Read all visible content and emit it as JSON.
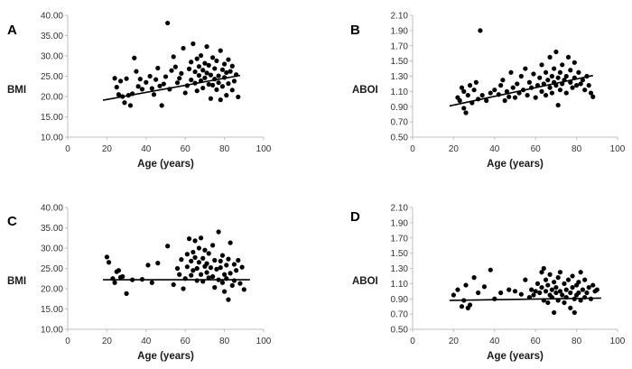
{
  "chart_data": [
    {
      "panel": "A",
      "type": "scatter",
      "xlabel": "Age (years)",
      "ylabel": "BMI",
      "xlim": [
        0,
        100
      ],
      "ylim": [
        10,
        40
      ],
      "x_ticks": [
        "0",
        "20",
        "40",
        "60",
        "80",
        "100"
      ],
      "y_ticks": [
        "10.00",
        "15.00",
        "20.00",
        "25.00",
        "30.00",
        "35.00",
        "40.00"
      ],
      "trendline": {
        "x": [
          18,
          88
        ],
        "y": [
          19.1,
          25.2
        ]
      },
      "points": [
        [
          24,
          24.5
        ],
        [
          25,
          22.3
        ],
        [
          26,
          20.5
        ],
        [
          27,
          23.8
        ],
        [
          28,
          20.0
        ],
        [
          29,
          18.5
        ],
        [
          30,
          24.4
        ],
        [
          31,
          20.3
        ],
        [
          32,
          17.8
        ],
        [
          33,
          20.7
        ],
        [
          34,
          29.5
        ],
        [
          35,
          26.2
        ],
        [
          36,
          22.5
        ],
        [
          37,
          24.3
        ],
        [
          38,
          21.8
        ],
        [
          40,
          23.5
        ],
        [
          42,
          25.0
        ],
        [
          43,
          22.0
        ],
        [
          44,
          20.5
        ],
        [
          45,
          24.2
        ],
        [
          46,
          27.0
        ],
        [
          47,
          22.6
        ],
        [
          48,
          17.8
        ],
        [
          49,
          23.1
        ],
        [
          50,
          24.9
        ],
        [
          51,
          38.1
        ],
        [
          52,
          21.8
        ],
        [
          53,
          26.4
        ],
        [
          54,
          29.8
        ],
        [
          55,
          27.3
        ],
        [
          56,
          23.4
        ],
        [
          57,
          24.5
        ],
        [
          58,
          25.7
        ],
        [
          59,
          31.9
        ],
        [
          60,
          20.9
        ],
        [
          61,
          22.7
        ],
        [
          62,
          26.8
        ],
        [
          63,
          24.1
        ],
        [
          63,
          28.5
        ],
        [
          64,
          33.0
        ],
        [
          65,
          23.3
        ],
        [
          65,
          26.1
        ],
        [
          66,
          21.4
        ],
        [
          66,
          29.3
        ],
        [
          67,
          25.2
        ],
        [
          67,
          27.4
        ],
        [
          68,
          23.9
        ],
        [
          68,
          30.1
        ],
        [
          69,
          26.5
        ],
        [
          69,
          22.1
        ],
        [
          70,
          24.6
        ],
        [
          70,
          28.2
        ],
        [
          71,
          25.8
        ],
        [
          71,
          32.3
        ],
        [
          72,
          23.0
        ],
        [
          72,
          27.7
        ],
        [
          73,
          19.5
        ],
        [
          73,
          25.3
        ],
        [
          74,
          29.6
        ],
        [
          74,
          22.8
        ],
        [
          75,
          24.3
        ],
        [
          75,
          26.9
        ],
        [
          76,
          21.7
        ],
        [
          76,
          28.8
        ],
        [
          77,
          25.1
        ],
        [
          77,
          23.4
        ],
        [
          78,
          31.3
        ],
        [
          78,
          19.2
        ],
        [
          79,
          26.6
        ],
        [
          79,
          22.5
        ],
        [
          80,
          24.7
        ],
        [
          80,
          28.0
        ],
        [
          81,
          20.3
        ],
        [
          81,
          25.9
        ],
        [
          82,
          23.2
        ],
        [
          82,
          29.1
        ],
        [
          83,
          26.2
        ],
        [
          84,
          21.6
        ],
        [
          84,
          27.5
        ],
        [
          85,
          23.8
        ],
        [
          86,
          25.4
        ],
        [
          87,
          19.9
        ]
      ]
    },
    {
      "panel": "B",
      "type": "scatter",
      "xlabel": "Age (years)",
      "ylabel": "ABOI",
      "xlim": [
        0,
        100
      ],
      "ylim": [
        0.5,
        2.1
      ],
      "x_ticks": [
        "0",
        "20",
        "40",
        "60",
        "80",
        "100"
      ],
      "y_ticks": [
        "0.50",
        "0.70",
        "0.90",
        "1.10",
        "1.30",
        "1.50",
        "1.70",
        "1.90",
        "2.10"
      ],
      "trendline": {
        "x": [
          18,
          88
        ],
        "y": [
          0.91,
          1.31
        ]
      },
      "points": [
        [
          22,
          1.02
        ],
        [
          23,
          0.98
        ],
        [
          24,
          1.15
        ],
        [
          25,
          0.88
        ],
        [
          25,
          1.1
        ],
        [
          26,
          0.82
        ],
        [
          27,
          1.05
        ],
        [
          28,
          1.18
        ],
        [
          29,
          0.95
        ],
        [
          30,
          1.12
        ],
        [
          31,
          1.22
        ],
        [
          32,
          1.0
        ],
        [
          33,
          1.9
        ],
        [
          34,
          1.05
        ],
        [
          36,
          0.98
        ],
        [
          38,
          1.08
        ],
        [
          40,
          1.12
        ],
        [
          42,
          1.06
        ],
        [
          43,
          1.18
        ],
        [
          44,
          1.25
        ],
        [
          45,
          0.98
        ],
        [
          46,
          1.1
        ],
        [
          47,
          1.03
        ],
        [
          48,
          1.35
        ],
        [
          49,
          1.15
        ],
        [
          50,
          1.02
        ],
        [
          51,
          1.2
        ],
        [
          52,
          1.08
        ],
        [
          53,
          1.3
        ],
        [
          54,
          1.12
        ],
        [
          55,
          1.4
        ],
        [
          56,
          1.05
        ],
        [
          57,
          1.22
        ],
        [
          58,
          1.15
        ],
        [
          59,
          1.33
        ],
        [
          60,
          1.02
        ],
        [
          61,
          1.18
        ],
        [
          62,
          1.28
        ],
        [
          63,
          1.1
        ],
        [
          63,
          1.45
        ],
        [
          64,
          1.2
        ],
        [
          65,
          1.35
        ],
        [
          65,
          1.05
        ],
        [
          66,
          1.25
        ],
        [
          67,
          1.55
        ],
        [
          67,
          1.15
        ],
        [
          68,
          1.3
        ],
        [
          68,
          1.08
        ],
        [
          69,
          1.4
        ],
        [
          69,
          1.22
        ],
        [
          70,
          1.18
        ],
        [
          70,
          1.62
        ],
        [
          71,
          1.28
        ],
        [
          71,
          0.92
        ],
        [
          72,
          1.35
        ],
        [
          72,
          1.12
        ],
        [
          73,
          1.2
        ],
        [
          73,
          1.45
        ],
        [
          74,
          1.25
        ],
        [
          75,
          1.3
        ],
        [
          75,
          1.08
        ],
        [
          76,
          1.55
        ],
        [
          77,
          1.22
        ],
        [
          77,
          1.38
        ],
        [
          78,
          1.15
        ],
        [
          79,
          1.48
        ],
        [
          79,
          1.28
        ],
        [
          80,
          1.18
        ],
        [
          81,
          1.35
        ],
        [
          82,
          1.2
        ],
        [
          83,
          1.25
        ],
        [
          84,
          1.12
        ],
        [
          85,
          1.3
        ],
        [
          86,
          1.18
        ],
        [
          87,
          1.08
        ],
        [
          88,
          1.03
        ]
      ]
    },
    {
      "panel": "C",
      "type": "scatter",
      "xlabel": "Age (years)",
      "ylabel": "BMI",
      "xlim": [
        0,
        100
      ],
      "ylim": [
        10,
        40
      ],
      "x_ticks": [
        "0",
        "20",
        "40",
        "60",
        "80",
        "100"
      ],
      "y_ticks": [
        "10.00",
        "15.00",
        "20.00",
        "25.00",
        "30.00",
        "35.00",
        "40.00"
      ],
      "trendline": {
        "x": [
          18,
          93
        ],
        "y": [
          22.2,
          22.2
        ]
      },
      "points": [
        [
          20,
          27.8
        ],
        [
          21,
          26.5
        ],
        [
          23,
          22.5
        ],
        [
          24,
          21.5
        ],
        [
          25,
          24.2
        ],
        [
          26,
          24.5
        ],
        [
          27,
          22.8
        ],
        [
          28,
          23.0
        ],
        [
          30,
          18.8
        ],
        [
          33,
          22.2
        ],
        [
          38,
          22.3
        ],
        [
          41,
          25.8
        ],
        [
          43,
          21.5
        ],
        [
          46,
          26.3
        ],
        [
          51,
          30.5
        ],
        [
          54,
          21.0
        ],
        [
          56,
          25.0
        ],
        [
          57,
          23.5
        ],
        [
          58,
          27.2
        ],
        [
          59,
          20.0
        ],
        [
          60,
          22.5
        ],
        [
          61,
          28.5
        ],
        [
          61,
          25.4
        ],
        [
          62,
          32.3
        ],
        [
          63,
          26.8
        ],
        [
          63,
          23.3
        ],
        [
          64,
          29.0
        ],
        [
          64,
          24.5
        ],
        [
          65,
          27.7
        ],
        [
          65,
          31.8
        ],
        [
          66,
          25.0
        ],
        [
          66,
          22.0
        ],
        [
          67,
          30.0
        ],
        [
          67,
          26.5
        ],
        [
          68,
          32.5
        ],
        [
          68,
          23.5
        ],
        [
          69,
          27.5
        ],
        [
          69,
          21.8
        ],
        [
          70,
          25.5
        ],
        [
          70,
          29.5
        ],
        [
          71,
          24.0
        ],
        [
          71,
          26.2
        ],
        [
          72,
          28.7
        ],
        [
          72,
          22.7
        ],
        [
          73,
          25.2
        ],
        [
          74,
          30.7
        ],
        [
          74,
          23.0
        ],
        [
          75,
          27.0
        ],
        [
          75,
          20.3
        ],
        [
          76,
          24.8
        ],
        [
          77,
          34.0
        ],
        [
          77,
          22.2
        ],
        [
          78,
          26.8
        ],
        [
          78,
          25.2
        ],
        [
          79,
          21.5
        ],
        [
          79,
          28.2
        ],
        [
          80,
          23.5
        ],
        [
          80,
          19.3
        ],
        [
          81,
          25.8
        ],
        [
          81,
          22.5
        ],
        [
          82,
          27.3
        ],
        [
          82,
          17.3
        ],
        [
          83,
          23.8
        ],
        [
          83,
          31.3
        ],
        [
          84,
          20.8
        ],
        [
          85,
          26.0
        ],
        [
          85,
          22.0
        ],
        [
          86,
          24.5
        ],
        [
          87,
          27.0
        ],
        [
          88,
          21.3
        ],
        [
          89,
          25.3
        ],
        [
          90,
          19.8
        ]
      ]
    },
    {
      "panel": "D",
      "type": "scatter",
      "xlabel": "Age (years)",
      "ylabel": "ABOI",
      "xlim": [
        0,
        100
      ],
      "ylim": [
        0.5,
        2.1
      ],
      "x_ticks": [
        "0",
        "20",
        "40",
        "60",
        "80",
        "100"
      ],
      "y_ticks": [
        "0.50",
        "0.70",
        "0.90",
        "1.10",
        "1.30",
        "1.50",
        "1.70",
        "1.90",
        "2.10"
      ],
      "trendline": {
        "x": [
          18,
          92
        ],
        "y": [
          0.88,
          0.91
        ]
      },
      "points": [
        [
          20,
          0.95
        ],
        [
          22,
          1.02
        ],
        [
          24,
          0.8
        ],
        [
          25,
          0.88
        ],
        [
          26,
          1.08
        ],
        [
          27,
          0.78
        ],
        [
          28,
          0.82
        ],
        [
          30,
          1.18
        ],
        [
          32,
          0.98
        ],
        [
          35,
          1.06
        ],
        [
          38,
          1.28
        ],
        [
          40,
          0.9
        ],
        [
          43,
          0.98
        ],
        [
          47,
          1.02
        ],
        [
          50,
          1.0
        ],
        [
          53,
          0.96
        ],
        [
          55,
          1.15
        ],
        [
          57,
          0.92
        ],
        [
          58,
          1.02
        ],
        [
          59,
          0.95
        ],
        [
          60,
          1.0
        ],
        [
          61,
          1.1
        ],
        [
          62,
          0.98
        ],
        [
          63,
          1.25
        ],
        [
          63,
          1.05
        ],
        [
          64,
          0.88
        ],
        [
          64,
          1.3
        ],
        [
          65,
          1.0
        ],
        [
          65,
          1.15
        ],
        [
          66,
          0.85
        ],
        [
          66,
          1.08
        ],
        [
          67,
          0.95
        ],
        [
          67,
          1.22
        ],
        [
          68,
          1.02
        ],
        [
          68,
          0.92
        ],
        [
          69,
          1.12
        ],
        [
          69,
          0.72
        ],
        [
          70,
          1.05
        ],
        [
          70,
          0.98
        ],
        [
          71,
          1.18
        ],
        [
          71,
          0.88
        ],
        [
          72,
          1.0
        ],
        [
          72,
          1.25
        ],
        [
          73,
          0.95
        ],
        [
          74,
          1.1
        ],
        [
          74,
          0.85
        ],
        [
          75,
          1.02
        ],
        [
          75,
          0.92
        ],
        [
          76,
          1.15
        ],
        [
          77,
          0.98
        ],
        [
          77,
          0.78
        ],
        [
          78,
          1.05
        ],
        [
          78,
          1.2
        ],
        [
          79,
          0.9
        ],
        [
          79,
          0.72
        ],
        [
          80,
          1.08
        ],
        [
          80,
          0.95
        ],
        [
          81,
          0.98
        ],
        [
          81,
          1.12
        ],
        [
          82,
          0.88
        ],
        [
          82,
          1.25
        ],
        [
          83,
          1.02
        ],
        [
          84,
          0.92
        ],
        [
          84,
          1.15
        ],
        [
          85,
          0.98
        ],
        [
          86,
          1.05
        ],
        [
          87,
          0.9
        ],
        [
          88,
          1.08
        ],
        [
          89,
          1.0
        ],
        [
          90,
          1.02
        ]
      ]
    }
  ]
}
